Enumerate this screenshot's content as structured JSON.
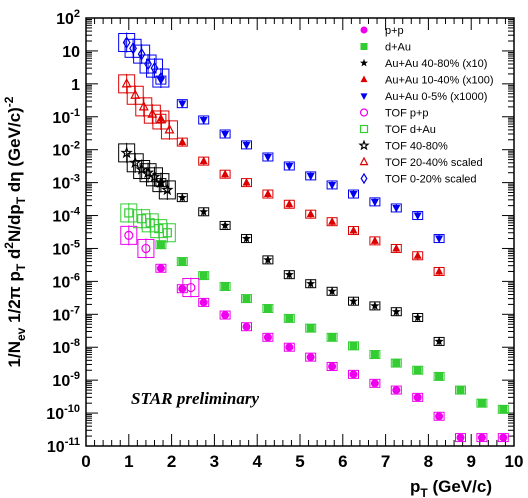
{
  "chart_data": {
    "type": "scatter",
    "title": "",
    "xlabel": "p_T (GeV/c)",
    "ylabel": "1/N_ev 1/2π p_T d²N/dp_T dη (GeV/c)^-2",
    "xlim": [
      0,
      10
    ],
    "ylim_log10": [
      -11,
      2
    ],
    "y_scale": "log",
    "x_ticks": [
      "0",
      "1",
      "2",
      "3",
      "4",
      "5",
      "6",
      "7",
      "8",
      "9",
      "10"
    ],
    "y_tick_labels": [
      {
        "base": "10",
        "exp": "-11"
      },
      {
        "base": "10",
        "exp": "-10"
      },
      {
        "base": "10",
        "exp": "-9"
      },
      {
        "base": "10",
        "exp": "-8"
      },
      {
        "base": "10",
        "exp": "-7"
      },
      {
        "base": "10",
        "exp": "-6"
      },
      {
        "base": "10",
        "exp": "-5"
      },
      {
        "base": "10",
        "exp": "-4"
      },
      {
        "base": "10",
        "exp": "-3"
      },
      {
        "base": "10",
        "exp": "-2"
      },
      {
        "base": "10",
        "exp": "-1"
      },
      {
        "base": "1",
        "exp": ""
      },
      {
        "base": "10",
        "exp": ""
      },
      {
        "base": "10",
        "exp": "2"
      }
    ],
    "annotation": "STAR preliminary",
    "legend_position": "top-right",
    "series": [
      {
        "name": "p+p",
        "marker": "circle-filled",
        "color": "#ee00ee",
        "x": [
          1.75,
          2.25,
          2.75,
          3.25,
          3.75,
          4.25,
          4.75,
          5.25,
          5.75,
          6.25,
          6.75,
          7.25,
          7.75,
          8.25,
          8.75,
          9.25,
          9.75
        ],
        "y": [
          2.5e-06,
          6e-07,
          2.3e-07,
          9.5e-08,
          4.2e-08,
          2e-08,
          1e-08,
          5e-09,
          2.6e-09,
          1.5e-09,
          8e-10,
          5e-10,
          3e-10,
          8e-11,
          1.8e-11,
          1.8e-11,
          1.8e-11
        ]
      },
      {
        "name": "d+Au",
        "marker": "square-filled",
        "color": "#33cc33",
        "x": [
          1.75,
          2.25,
          2.75,
          3.25,
          3.75,
          4.25,
          4.75,
          5.25,
          5.75,
          6.25,
          6.75,
          7.25,
          7.75,
          8.25,
          8.75,
          9.25,
          9.75
        ],
        "y": [
          1.3e-05,
          4e-06,
          1.5e-06,
          7e-07,
          3e-07,
          1.5e-07,
          7.5e-08,
          3.8e-08,
          2e-08,
          1.1e-08,
          6e-09,
          3.3e-09,
          2e-09,
          1.3e-09,
          5e-10,
          2e-10,
          1.3e-10
        ]
      },
      {
        "name": "Au+Au 40-80% (x10)",
        "marker": "star-filled",
        "color": "#000000",
        "x": [
          1.75,
          2.25,
          2.75,
          3.25,
          3.75,
          4.25,
          4.75,
          5.25,
          5.75,
          6.25,
          6.75,
          7.25,
          7.75,
          8.25
        ],
        "y": [
          0.001,
          0.00035,
          0.00013,
          5e-05,
          2e-05,
          4.5e-06,
          1.6e-06,
          8.5e-07,
          5e-07,
          2.5e-07,
          1.8e-07,
          1.2e-07,
          8e-08,
          1.5e-08
        ]
      },
      {
        "name": "Au+Au 10-40% (x100)",
        "marker": "triangle-up-filled",
        "color": "#dd0000",
        "x": [
          1.75,
          2.25,
          2.75,
          3.25,
          3.75,
          4.25,
          4.75,
          5.25,
          5.75,
          6.25,
          6.75,
          7.25,
          7.75,
          8.25
        ],
        "y": [
          0.09,
          0.017,
          0.0045,
          0.0018,
          0.001,
          0.00045,
          0.00022,
          0.00011,
          6.5e-05,
          3.5e-05,
          1.7e-05,
          1e-05,
          6e-06,
          2e-06
        ]
      },
      {
        "name": "Au+Au 0-5% (x1000)",
        "marker": "triangle-down-filled",
        "color": "#0000ee",
        "x": [
          1.75,
          2.25,
          2.75,
          3.25,
          3.75,
          4.25,
          4.75,
          5.25,
          5.75,
          6.25,
          6.75,
          7.25,
          7.75,
          8.25
        ],
        "y": [
          1.3,
          0.25,
          0.08,
          0.03,
          0.014,
          0.006,
          0.0032,
          0.0016,
          0.00085,
          0.00045,
          0.00026,
          0.00017,
          0.0001,
          2e-05
        ]
      },
      {
        "name": "TOF p+p",
        "marker": "circle-open",
        "color": "#ee00ee",
        "x": [
          1.0,
          1.4,
          2.45
        ],
        "y": [
          2.5e-05,
          1e-05,
          6.5e-07
        ]
      },
      {
        "name": "TOF d+Au",
        "marker": "square-open",
        "color": "#33cc33",
        "x": [
          1.0,
          1.3,
          1.5,
          1.7,
          1.9
        ],
        "y": [
          0.00012,
          8e-05,
          6e-05,
          4e-05,
          3e-05
        ]
      },
      {
        "name": "TOF 40-80%",
        "marker": "star-open",
        "color": "#000000",
        "x": [
          0.95,
          1.15,
          1.3,
          1.45,
          1.6,
          1.75,
          1.9
        ],
        "y": [
          0.008,
          0.004,
          0.0025,
          0.002,
          0.0015,
          0.001,
          0.0006
        ]
      },
      {
        "name": "TOF 20-40% scaled",
        "marker": "triangle-up-open",
        "color": "#dd0000",
        "x": [
          0.95,
          1.15,
          1.35,
          1.55,
          1.75,
          1.95
        ],
        "y": [
          1.0,
          0.45,
          0.2,
          0.12,
          0.08,
          0.04
        ]
      },
      {
        "name": "TOF 0-20% scaled",
        "marker": "diamond-open",
        "color": "#0000ee",
        "x": [
          0.95,
          1.1,
          1.3,
          1.45,
          1.6,
          1.75
        ],
        "y": [
          18,
          12,
          8,
          4,
          3,
          1.5
        ]
      }
    ]
  }
}
